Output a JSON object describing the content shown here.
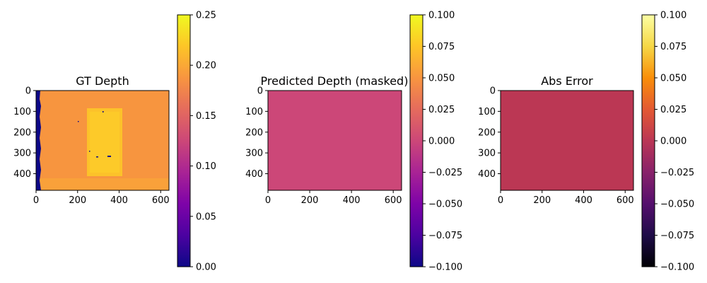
{
  "chart_data": [
    {
      "type": "heatmap",
      "title": "GT Depth",
      "x_ticks": [
        0,
        200,
        400,
        600
      ],
      "y_ticks": [
        0,
        100,
        200,
        300,
        400
      ],
      "xlim": [
        0,
        640
      ],
      "ylim": [
        480,
        0
      ],
      "colormap": "plasma",
      "colorbar": {
        "range": [
          0.0,
          0.25
        ],
        "ticks": [
          "0.00",
          "0.05",
          "0.10",
          "0.15",
          "0.20",
          "0.25"
        ]
      },
      "background_value": 0.18,
      "edge_strip_value": 0.0,
      "bright_rectangle": {
        "x_range": [
          245,
          415
        ],
        "y_range": [
          85,
          410
        ],
        "value": 0.22
      },
      "invalid_pixels_value": 0.0
    },
    {
      "type": "heatmap",
      "title": "Predicted Depth (masked)",
      "x_ticks": [
        0,
        200,
        400,
        600
      ],
      "y_ticks": [
        0,
        100,
        200,
        300,
        400
      ],
      "xlim": [
        0,
        640
      ],
      "ylim": [
        480,
        0
      ],
      "colormap": "plasma",
      "colorbar": {
        "range": [
          -0.1,
          0.1
        ],
        "ticks": [
          "0.100",
          "0.075",
          "0.050",
          "0.025",
          "0.000",
          "−0.025",
          "−0.050",
          "−0.075",
          "−0.100"
        ]
      },
      "uniform_value": 0.0,
      "fill_color": "#cc4778"
    },
    {
      "type": "heatmap",
      "title": "Abs Error",
      "x_ticks": [
        0,
        200,
        400,
        600
      ],
      "y_ticks": [
        0,
        100,
        200,
        300,
        400
      ],
      "xlim": [
        0,
        640
      ],
      "ylim": [
        480,
        0
      ],
      "colormap": "inferno",
      "colorbar": {
        "range": [
          -0.1,
          0.1
        ],
        "ticks": [
          "0.100",
          "0.075",
          "0.050",
          "0.025",
          "0.000",
          "−0.025",
          "−0.050",
          "−0.075",
          "−0.100"
        ]
      },
      "uniform_value": 0.0,
      "fill_color": "#bb3754"
    }
  ]
}
